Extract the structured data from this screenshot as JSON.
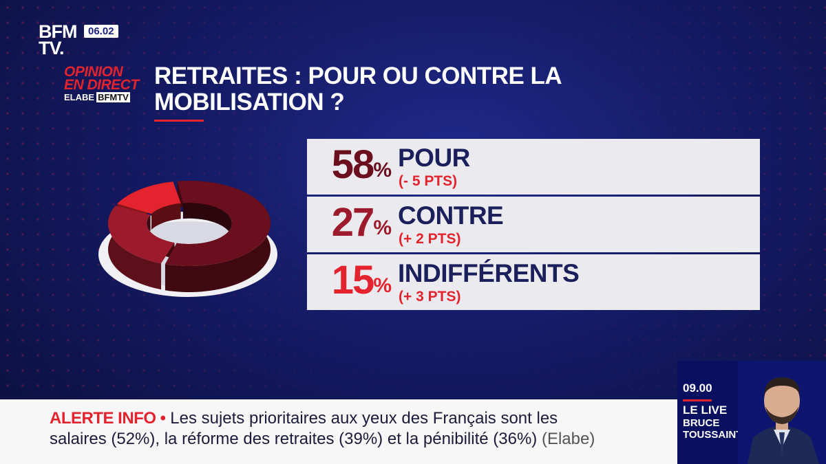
{
  "channel": {
    "logo_line1": "BFM",
    "logo_line2": "TV.",
    "clock": "06.02"
  },
  "segment": {
    "line1": "OPINION",
    "line2": "EN DIRECT",
    "partner": "ELABE",
    "partner_channel": "BFMTV"
  },
  "title": "RETRAITES : POUR OU CONTRE LA MOBILISATION ?",
  "chart_data": {
    "type": "pie",
    "categories": [
      "POUR",
      "CONTRE",
      "INDIFFÉRENTS"
    ],
    "values": [
      58,
      27,
      15
    ],
    "changes": [
      "(- 5 PTS)",
      "(+ 2 PTS)",
      "(+ 3 PTS)"
    ],
    "colors": [
      "#6b0f1e",
      "#9c1a2c",
      "#e3242f"
    ]
  },
  "rows": [
    {
      "pct": "58",
      "pct_sign": "%",
      "label": "POUR",
      "change": "(- 5 PTS)",
      "color": "#6b0f1e"
    },
    {
      "pct": "27",
      "pct_sign": "%",
      "label": "CONTRE",
      "change": "(+ 2 PTS)",
      "color": "#9c1a2c"
    },
    {
      "pct": "15",
      "pct_sign": "%",
      "label": "INDIFFÉRENTS",
      "change": "(+ 3 PTS)",
      "color": "#e3242f"
    }
  ],
  "ticker": {
    "alert": "ALERTE INFO •",
    "line1": "Les sujets prioritaires aux yeux des Français sont les",
    "line2": "salaires (52%), la réforme des retraites (39%) et la pénibilité (36%)",
    "source": "(Elabe)"
  },
  "next_program": {
    "time": "09.00",
    "show": "LE LIVE",
    "host_line1": "BRUCE",
    "host_line2": "TOUSSAINT"
  }
}
